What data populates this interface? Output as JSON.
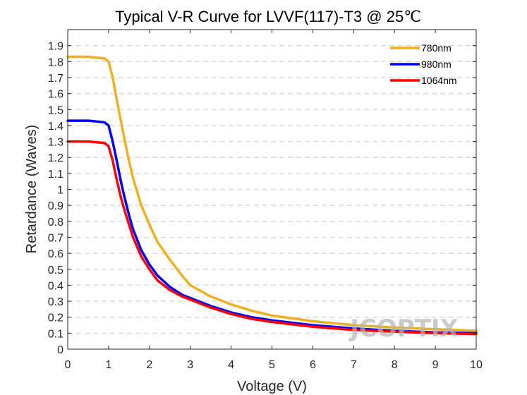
{
  "chart_data": {
    "type": "line",
    "title": "Typical V-R Curve for LVVF(117)-T3 @ 25℃",
    "xlabel": "Voltage (V)",
    "ylabel": "Retardance (Waves)",
    "xlim": [
      0,
      10
    ],
    "ylim": [
      0,
      2.0
    ],
    "xticks": [
      0,
      1,
      2,
      3,
      4,
      5,
      6,
      7,
      8,
      9,
      10
    ],
    "yticks": [
      0,
      0.1,
      0.2,
      0.3,
      0.4,
      0.5,
      0.6,
      0.7,
      0.8,
      0.9,
      1,
      1.1,
      1.2,
      1.3,
      1.4,
      1.5,
      1.6,
      1.7,
      1.8,
      1.9
    ],
    "grid": "horizontal-dashed",
    "legend_position": "top-right",
    "watermark": "JCOPTIX",
    "series": [
      {
        "name": "780nm",
        "color": "#EDB120",
        "x": [
          0,
          0.5,
          0.9,
          1.0,
          1.1,
          1.2,
          1.3,
          1.4,
          1.5,
          1.6,
          1.8,
          2.0,
          2.2,
          2.5,
          2.8,
          3.0,
          3.5,
          4.0,
          4.5,
          5.0,
          6.0,
          7.0,
          8.0,
          9.0,
          10.0
        ],
        "y": [
          1.83,
          1.83,
          1.82,
          1.8,
          1.7,
          1.56,
          1.43,
          1.3,
          1.18,
          1.07,
          0.9,
          0.78,
          0.67,
          0.56,
          0.46,
          0.4,
          0.33,
          0.28,
          0.24,
          0.21,
          0.175,
          0.15,
          0.135,
          0.125,
          0.115
        ]
      },
      {
        "name": "980nm",
        "color": "#0000FF",
        "x": [
          0,
          0.5,
          0.9,
          1.0,
          1.1,
          1.2,
          1.3,
          1.4,
          1.5,
          1.6,
          1.8,
          2.0,
          2.2,
          2.5,
          2.8,
          3.0,
          3.5,
          4.0,
          4.5,
          5.0,
          6.0,
          7.0,
          8.0,
          9.0,
          10.0
        ],
        "y": [
          1.43,
          1.43,
          1.42,
          1.4,
          1.3,
          1.18,
          1.05,
          0.94,
          0.84,
          0.75,
          0.62,
          0.53,
          0.46,
          0.39,
          0.34,
          0.32,
          0.27,
          0.23,
          0.2,
          0.18,
          0.15,
          0.13,
          0.115,
          0.105,
          0.1
        ]
      },
      {
        "name": "1064nm",
        "color": "#FF0000",
        "x": [
          0,
          0.5,
          0.9,
          1.0,
          1.1,
          1.2,
          1.3,
          1.4,
          1.5,
          1.6,
          1.8,
          2.0,
          2.2,
          2.5,
          2.8,
          3.0,
          3.5,
          4.0,
          4.5,
          5.0,
          6.0,
          7.0,
          8.0,
          9.0,
          10.0
        ],
        "y": [
          1.3,
          1.3,
          1.29,
          1.27,
          1.18,
          1.06,
          0.95,
          0.86,
          0.78,
          0.7,
          0.58,
          0.5,
          0.43,
          0.37,
          0.33,
          0.31,
          0.26,
          0.22,
          0.19,
          0.17,
          0.14,
          0.12,
          0.11,
          0.1,
          0.095
        ]
      }
    ]
  }
}
